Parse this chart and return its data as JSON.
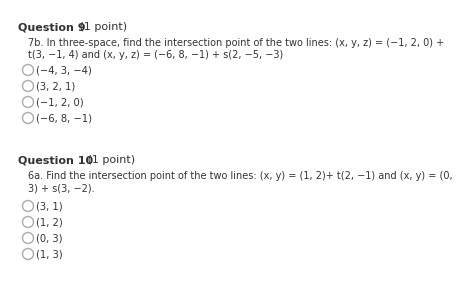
{
  "background_color": "#ffffff",
  "text_color": "#333333",
  "circle_color": "#aaaaaa",
  "q9_title": "Question 9",
  "q9_point": " (1 point)",
  "q9_body_line1": "7b. In three-space, find the intersection point of the two lines: (x, y, z) = (−1, 2, 0) +",
  "q9_body_line2": "t(3, −1, 4) and (x, y, z) = (−6, 8, −1) + s(2, −5, −3)",
  "q9_options": [
    "(−4, 3, −4)",
    "(3, 2, 1)",
    "(−1, 2, 0)",
    "(−6, 8, −1)"
  ],
  "q10_title": "Question 10",
  "q10_point": " (1 point)",
  "q10_body_line1": "6a. Find the intersection point of the two lines: (x, y) = (1, 2)+ t(2, −1) and (x, y) = (0,",
  "q10_body_line2": "3) + s(3, −2).",
  "q10_options": [
    "(3, 1)",
    "(1, 2)",
    "(0, 3)",
    "(1, 3)"
  ],
  "title_fontsize": 8.0,
  "body_fontsize": 7.0,
  "option_fontsize": 7.2
}
